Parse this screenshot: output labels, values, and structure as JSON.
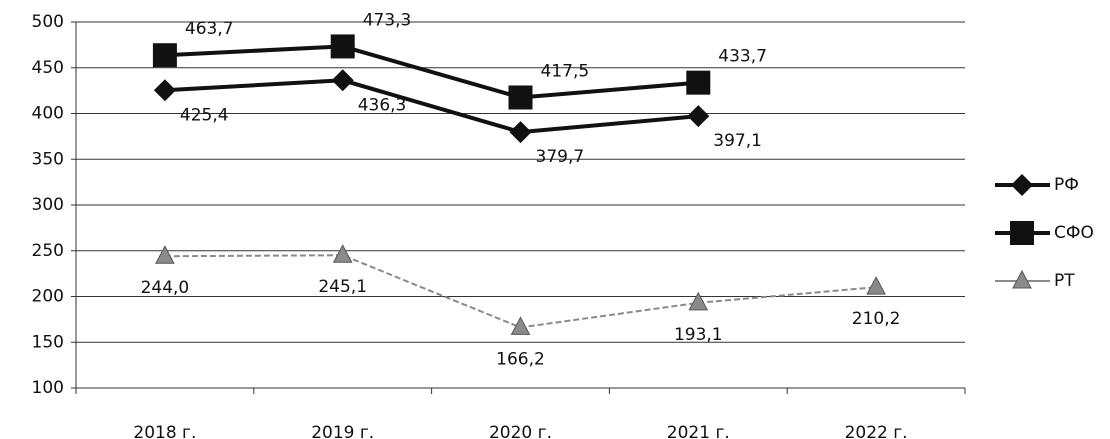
{
  "chart_data": {
    "type": "line",
    "categories": [
      "2018 г.",
      "2019 г.",
      "2020 г.",
      "2021 г.",
      "2022 г."
    ],
    "series": [
      {
        "name": "РФ",
        "color": "#111111",
        "marker": "diamond",
        "values": [
          425.4,
          436.3,
          379.7,
          397.1,
          null
        ],
        "value_labels": [
          "425,4",
          "436,3",
          "379,7",
          "397,1",
          null
        ]
      },
      {
        "name": "СФО",
        "color": "#111111",
        "marker": "square",
        "values": [
          463.7,
          473.3,
          417.5,
          433.7,
          null
        ],
        "value_labels": [
          "463,7",
          "473,3",
          "417,5",
          "433,7",
          null
        ]
      },
      {
        "name": "РТ",
        "color": "#8a8a8a",
        "marker": "triangle",
        "values": [
          244.0,
          245.1,
          166.2,
          193.1,
          210.2
        ],
        "value_labels": [
          "244,0",
          "245,1",
          "166,2",
          "193,1",
          "210,2"
        ]
      }
    ],
    "ylim": [
      100,
      500
    ],
    "yticks": [
      100,
      150,
      200,
      250,
      300,
      350,
      400,
      450,
      500
    ],
    "grid": true,
    "legend": "right"
  }
}
